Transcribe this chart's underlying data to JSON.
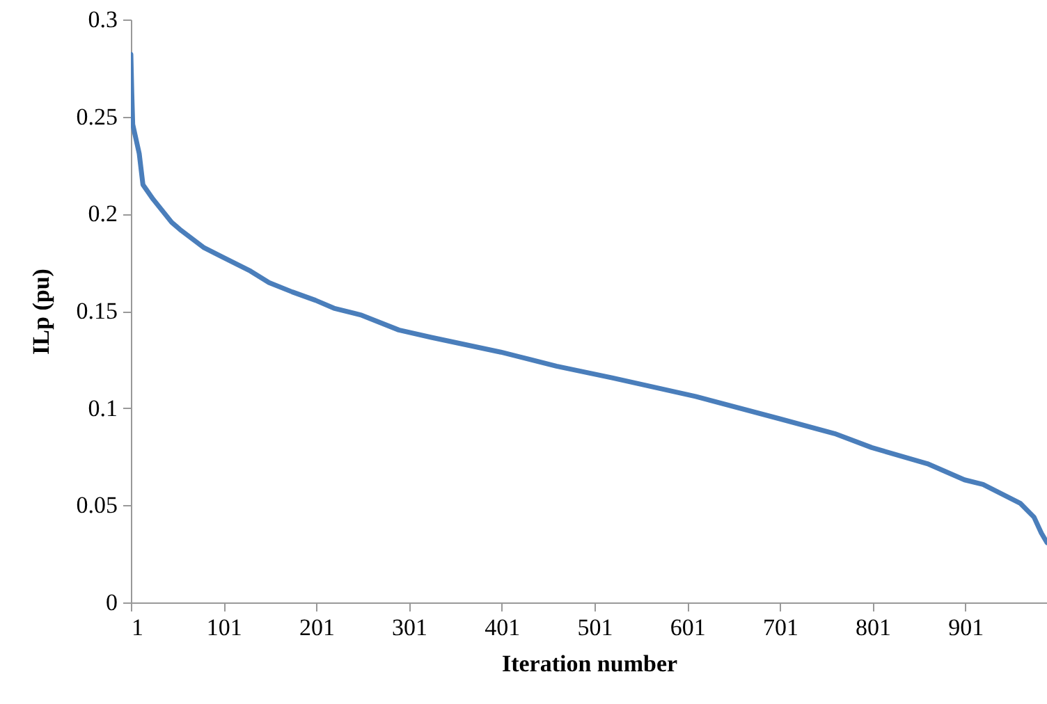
{
  "chart_data": {
    "type": "line",
    "xlabel": "Iteration number",
    "ylabel": "ILp (pu)",
    "x": [
      1,
      2,
      3,
      10,
      14,
      25,
      45,
      55,
      80,
      100,
      130,
      150,
      175,
      200,
      220,
      250,
      290,
      325,
      400,
      460,
      520,
      610,
      700,
      760,
      800,
      860,
      900,
      920,
      960,
      975,
      983,
      989
    ],
    "series": [
      {
        "color": "#4a7ebb",
        "values": [
          0.282,
          0.262,
          0.246,
          0.231,
          0.215,
          0.2075,
          0.1956,
          0.1915,
          0.1825,
          0.1777,
          0.1705,
          0.1646,
          0.1598,
          0.1555,
          0.1514,
          0.1478,
          0.1402,
          0.1364,
          0.1288,
          0.1216,
          0.1156,
          0.106,
          0.0946,
          0.0869,
          0.0797,
          0.0714,
          0.0631,
          0.0607,
          0.0511,
          0.0439,
          0.0356,
          0.0308
        ]
      }
    ],
    "xlim": [
      1,
      989
    ],
    "xticks": [
      1,
      101,
      201,
      301,
      401,
      501,
      601,
      701,
      801,
      901
    ],
    "ylim": [
      0,
      0.3
    ],
    "yticks": [
      0,
      0.05,
      0.1,
      0.15,
      0.2,
      0.25,
      0.3
    ],
    "grid": false,
    "marker": "none",
    "line_style": "solid"
  }
}
